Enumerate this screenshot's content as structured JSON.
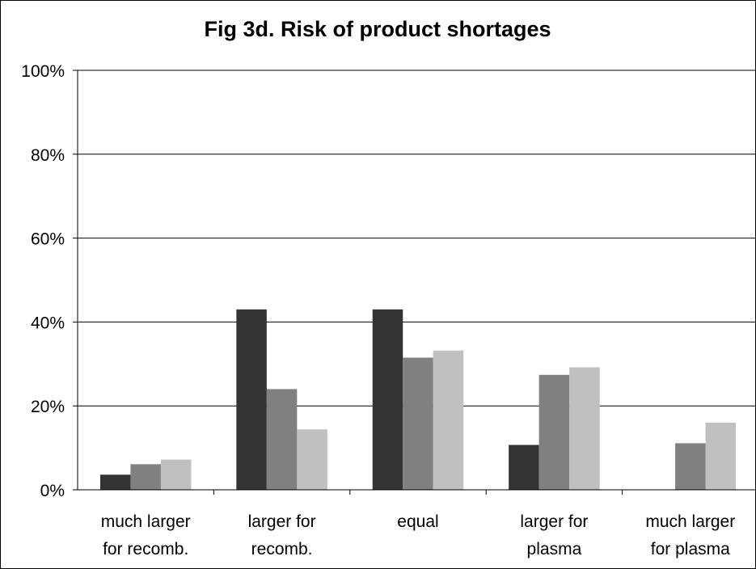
{
  "chart_data": {
    "type": "bar",
    "title": "Fig 3d. Risk of product shortages",
    "xlabel": "",
    "ylabel": "",
    "ylim": [
      0,
      100
    ],
    "y_ticks": [
      "0%",
      "20%",
      "40%",
      "60%",
      "80%",
      "100%"
    ],
    "y_tick_values": [
      0,
      20,
      40,
      60,
      80,
      100
    ],
    "categories": [
      [
        "much larger",
        "for recomb."
      ],
      [
        "larger for",
        "recomb."
      ],
      [
        "equal"
      ],
      [
        "larger for",
        "plasma"
      ],
      [
        "much larger",
        "for plasma"
      ]
    ],
    "series": [
      {
        "color": "#333333",
        "values": [
          3.6,
          43,
          43,
          10.7,
          0
        ]
      },
      {
        "color": "#808080",
        "values": [
          6.1,
          24,
          31.5,
          27.4,
          11.1
        ]
      },
      {
        "color": "#c0c0c0",
        "values": [
          7.2,
          14.4,
          33.2,
          29.2,
          16
        ]
      }
    ],
    "grid": true,
    "legend": "none"
  }
}
